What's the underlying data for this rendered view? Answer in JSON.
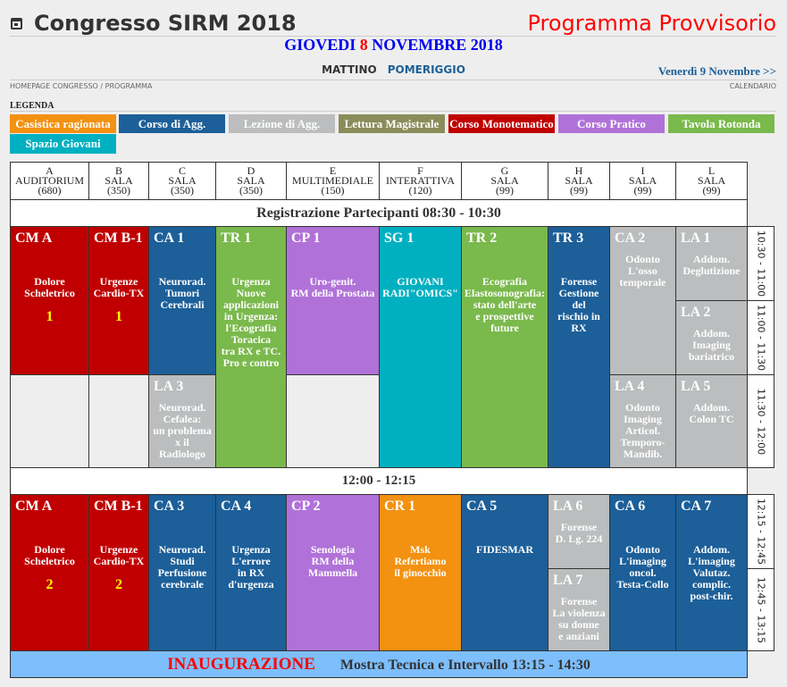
{
  "header": {
    "title": "Congresso SIRM 2018",
    "status": "Programma Provvisorio",
    "day_pre": "GIOVEDI ",
    "day_num": "8",
    "day_post": " NOVEMBRE 2018",
    "tab_morning": "MATTINO",
    "tab_afternoon": "POMERIGGIO",
    "next_day": "Venerdì 9 Novembre >>",
    "crumb_home": "HOMEPAGE CONGRESSO",
    "crumb_sep": "/",
    "crumb_prog": "PROGRAMMA",
    "calendar": "CALENDARIO"
  },
  "legend": {
    "title": "LEGENDA",
    "items": [
      "Casistica ragionata",
      "Corso di Agg.",
      "Lezione di Agg.",
      "Lettura Magistrale",
      "Corso Monotematico",
      "Corso Pratico",
      "Tavola Rotonda",
      "Spazio Giovani"
    ]
  },
  "colors": {
    "casistica": "#f39110",
    "corso_agg": "#1c5f99",
    "lezione": "#bbbdbe",
    "lettura": "#8a8d5a",
    "monotematico": "#c00000",
    "pratico": "#b072d8",
    "tavola": "#7ab94c",
    "giovani": "#00b0c0",
    "inaugurazione_bg": "#7dbefc"
  },
  "rooms": [
    "A\nAUDITORIUM\n(680)",
    "B\nSALA\n(350)",
    "C\nSALA\n(350)",
    "D\nSALA\n(350)",
    "E\nMULTIMEDIALE\n(150)",
    "F\nINTERATTIVA\n(120)",
    "G\nSALA\n(99)",
    "H\nSALA\n(99)",
    "I\nSALA\n(99)",
    "L\nSALA\n(99)"
  ],
  "bands": {
    "registration": "Registrazione Partecipanti 08:30 - 10:30",
    "break": "12:00 - 12:15",
    "inaug": "INAUGURAZIONE",
    "exhibit": "Mostra Tecnica e Intervallo 13:15 - 14:30"
  },
  "times": [
    "10:30 - 11:00",
    "11:00 - 11:30",
    "11:30 - 12:00",
    "12:15 - 12:45",
    "12:45 - 13:15"
  ],
  "sessions": [
    {
      "code": "CM A",
      "desc": "Dolore\nScheletrico",
      "num": "1"
    },
    {
      "code": "CM B-1",
      "desc": "Urgenze\nCardio-TX",
      "num": "1"
    },
    {
      "code": "CA 1",
      "desc": "Neurorad.\nTumori\nCerebrali"
    },
    {
      "code": "TR 1",
      "desc": "Urgenza\nNuove\napplicazioni\nin Urgenza:\nl'Ecografia\nToracica\ntra RX e TC.\nPro e contro"
    },
    {
      "code": "CP 1",
      "desc": "Uro-genit.\nRM della Prostata"
    },
    {
      "code": "SG 1",
      "desc": "GIOVANI\nRADI\"OMICS\""
    },
    {
      "code": "TR 2",
      "desc": "Ecografia\nElastosonografia:\nstato dell'arte\ne prospettive\nfuture"
    },
    {
      "code": "TR 3",
      "desc": "Forense\nGestione\ndel\nrischio in\nRX"
    },
    {
      "code": "CA 2",
      "desc": "Odonto\nL'osso\ntemporale"
    },
    {
      "code": "LA 1",
      "desc": "Addom.\nDeglutizione"
    },
    {
      "code": "LA 2",
      "desc": "Addom.\nImaging\nbariatrico"
    },
    {
      "code": "LA 3",
      "desc": "Neurorad.\nCefalea:\nun problema\nx il\nRadiologo"
    },
    {
      "code": "LA 4",
      "desc": "Odonto\nImaging\nArticol.\nTemporo-\nMandib."
    },
    {
      "code": "LA 5",
      "desc": "Addom.\nColon TC"
    },
    {
      "code": "CM A",
      "desc": "Dolore\nScheletrico",
      "num": "2"
    },
    {
      "code": "CM B-1",
      "desc": "Urgenze\nCardio-TX",
      "num": "2"
    },
    {
      "code": "CA 3",
      "desc": "Neurorad.\nStudi\nPerfusione\ncerebrale"
    },
    {
      "code": "CA 4",
      "desc": "Urgenza\nL'errore\nin RX\nd'urgenza"
    },
    {
      "code": "CP 2",
      "desc": "Senologia\nRM della\nMammella"
    },
    {
      "code": "CR 1",
      "desc": "Msk\nRefertiamo\nil ginocchio"
    },
    {
      "code": "CA 5",
      "desc": "FIDESMAR"
    },
    {
      "code": "LA 6",
      "desc": "Forense\nD. Lg. 224"
    },
    {
      "code": "LA 7",
      "desc": "Forense\nLa violenza\nsu donne\ne anziani"
    },
    {
      "code": "CA 6",
      "desc": "Odonto\nL'imaging\noncol.\nTesta-Collo"
    },
    {
      "code": "CA 7",
      "desc": "Addom.\nL'imaging\nValutaz.\ncomplic.\npost-chir."
    }
  ]
}
